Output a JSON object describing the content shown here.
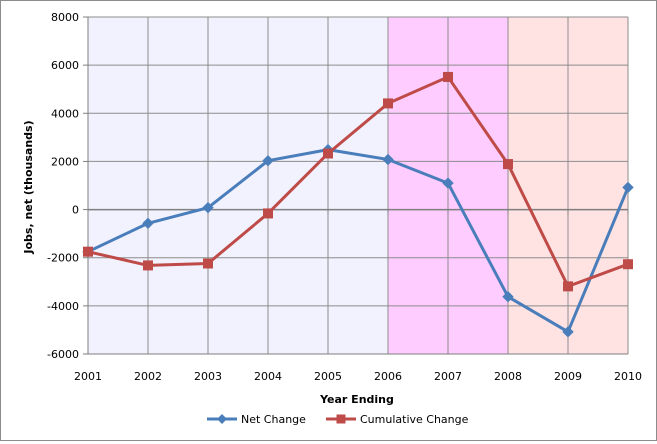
{
  "chart_data": {
    "type": "line",
    "title": "",
    "xlabel": "Year Ending",
    "ylabel": "Jobs, net (thousands)",
    "x": [
      "2001",
      "2002",
      "2003",
      "2004",
      "2005",
      "2006",
      "2007",
      "2008",
      "2009",
      "2010"
    ],
    "ylim": [
      -6000,
      8000
    ],
    "yticks": [
      8000,
      6000,
      4000,
      2000,
      0,
      -2000,
      -4000,
      -6000
    ],
    "ytick_labels": [
      "8000",
      "6000",
      "4000",
      "2000",
      "0",
      "-2000",
      "-4000",
      "-6000"
    ],
    "grid": true,
    "legend_position": "bottom",
    "shaded_regions": [
      {
        "from": "2001",
        "to": "2006",
        "color": "#f2f2ff"
      },
      {
        "from": "2006",
        "to": "2008",
        "color": "#ffccff"
      },
      {
        "from": "2008",
        "to": "2010",
        "color": "#ffe3e3"
      }
    ],
    "series": [
      {
        "name": "Net Change",
        "color": "#4a7ebb",
        "marker": "diamond",
        "values": [
          -1750,
          -570,
          80,
          2030,
          2490,
          2080,
          1100,
          -3620,
          -5080,
          920
        ]
      },
      {
        "name": "Cumulative Change",
        "color": "#be4b48",
        "marker": "square",
        "values": [
          -1750,
          -2320,
          -2240,
          -160,
          2330,
          4410,
          5510,
          1890,
          -3190,
          -2270
        ]
      }
    ]
  }
}
